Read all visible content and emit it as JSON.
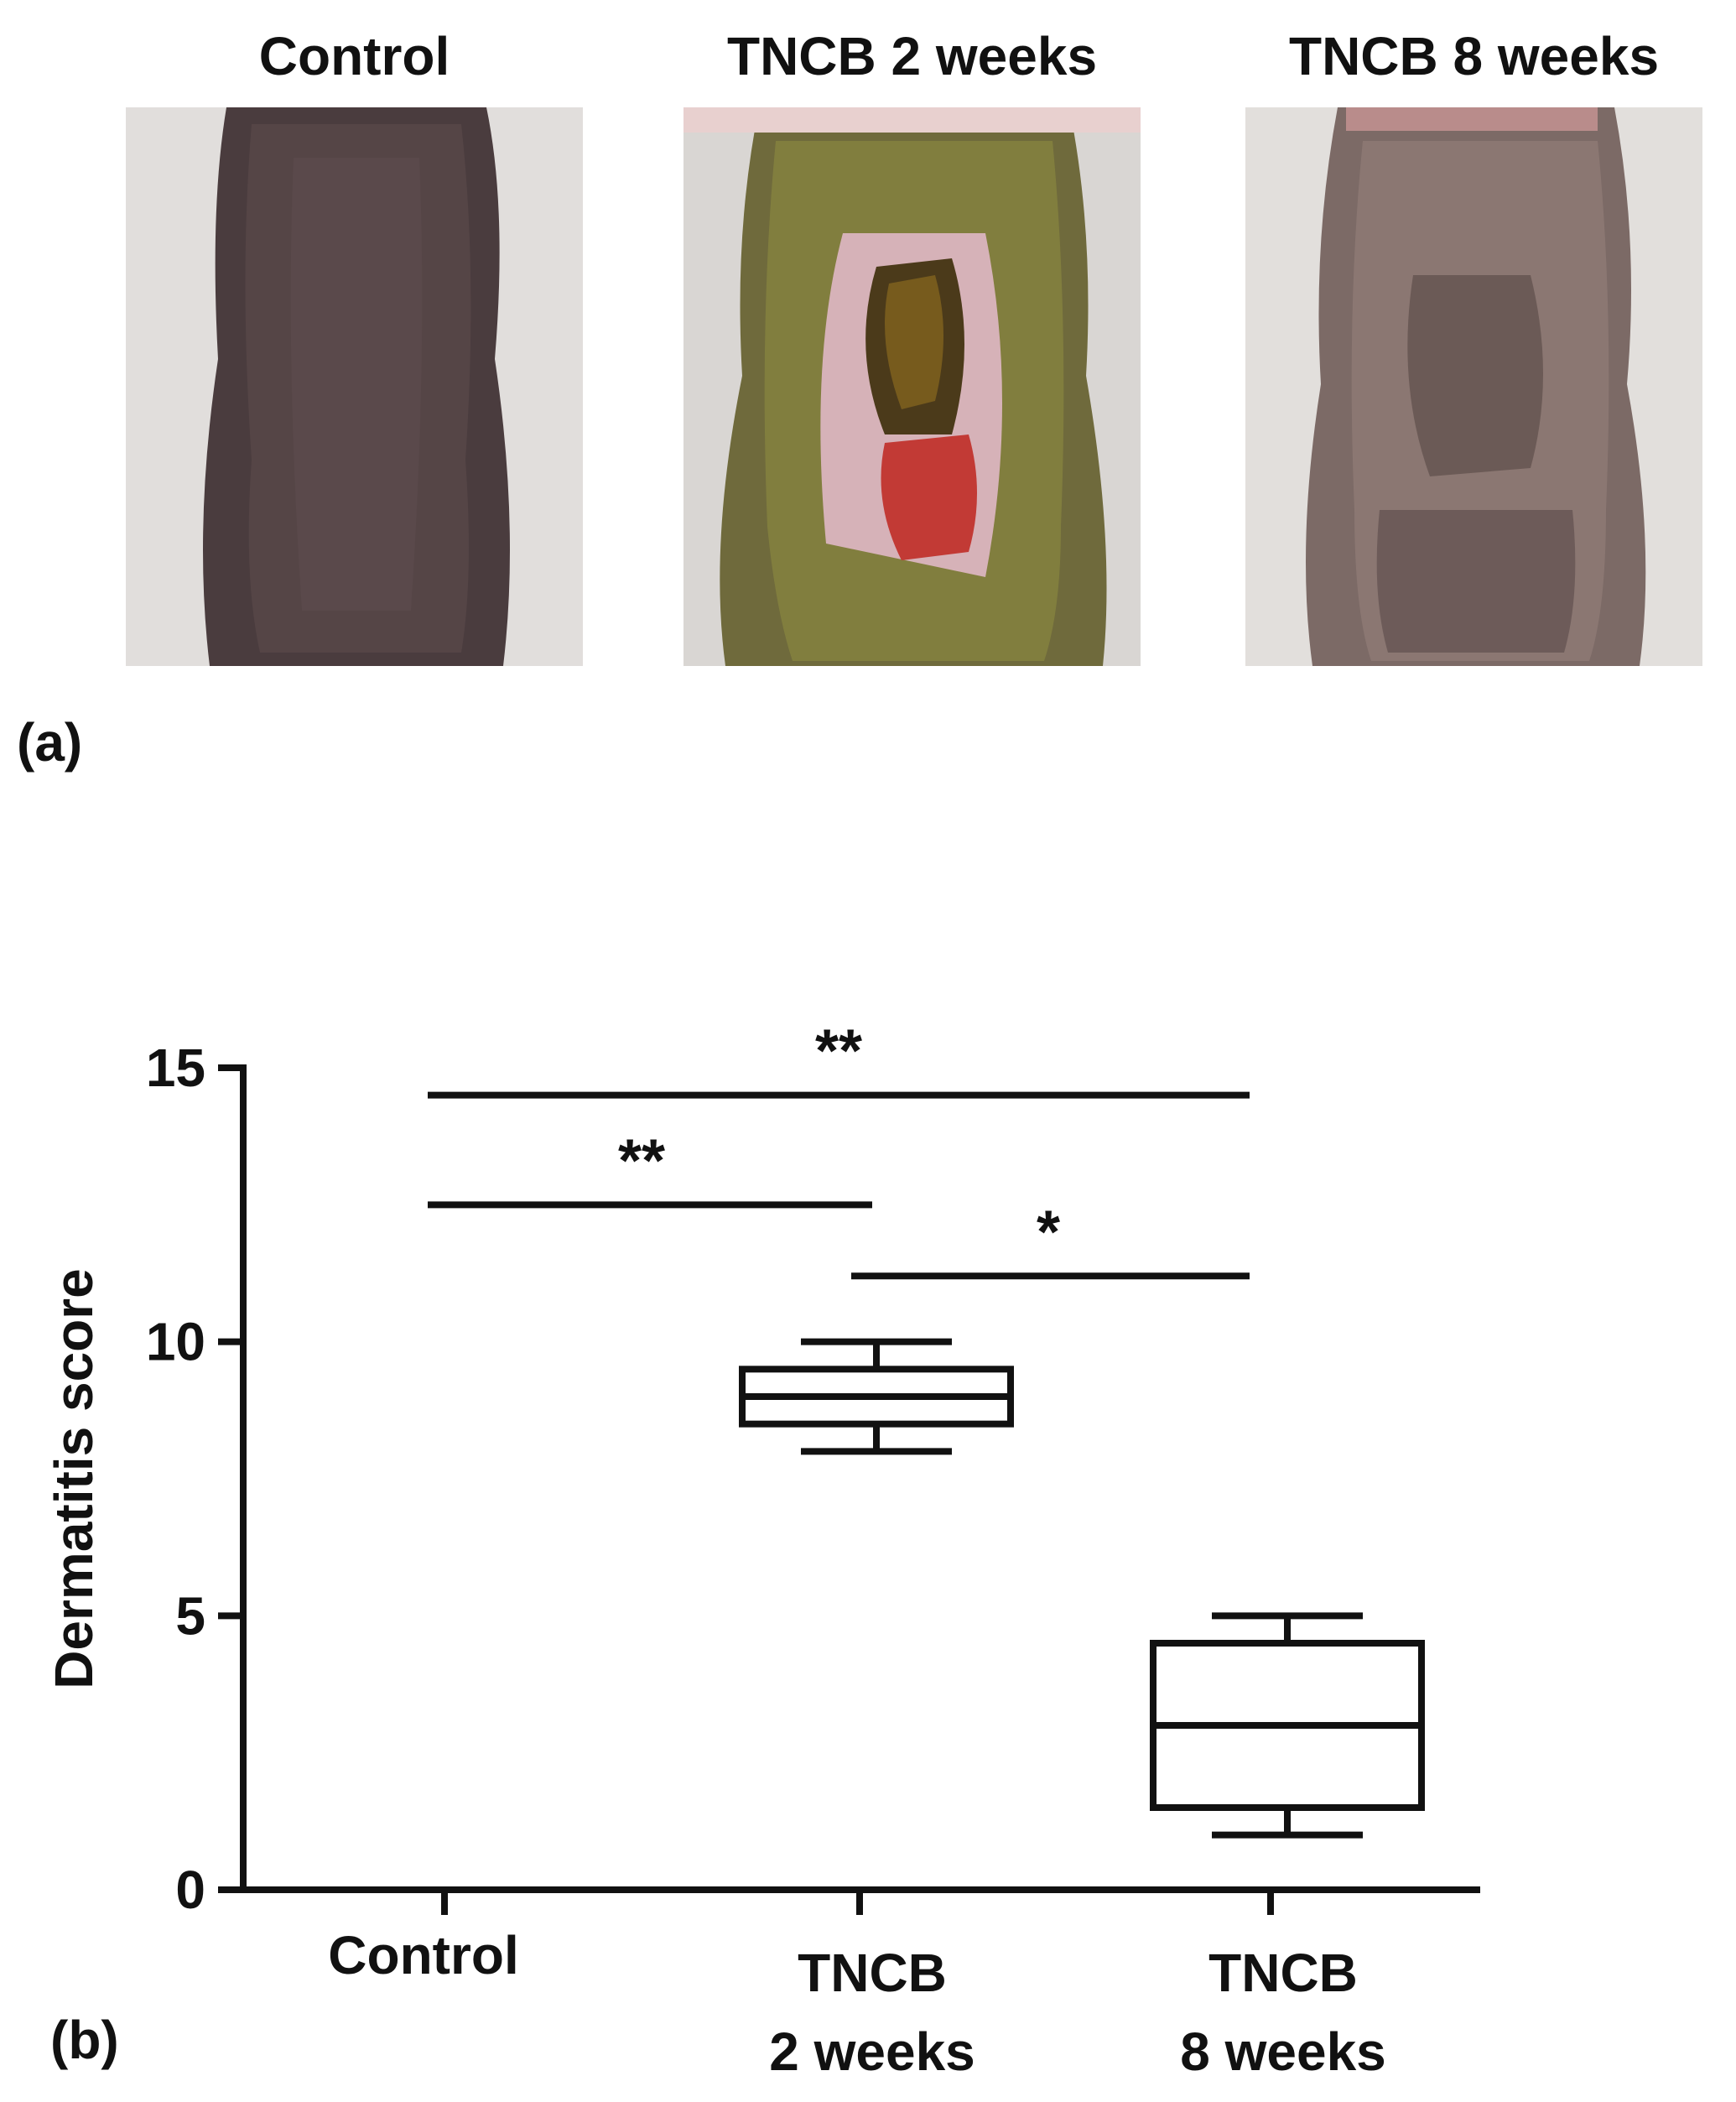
{
  "panel_a": {
    "label": "(a)",
    "photos": [
      {
        "title": "Control",
        "condition": "normal-skin"
      },
      {
        "title": "TNCB 2 weeks",
        "condition": "severe-lesion"
      },
      {
        "title": "TNCB 8 weeks",
        "condition": "mild-lesion"
      }
    ]
  },
  "panel_b": {
    "label": "(b)"
  },
  "chart_data": {
    "type": "boxplot",
    "title": "",
    "xlabel": "",
    "ylabel": "Dermatitis score",
    "ylim": [
      0,
      15
    ],
    "yticks": [
      0,
      5,
      10,
      15
    ],
    "categories": [
      {
        "lines": [
          "Control"
        ]
      },
      {
        "lines": [
          "TNCB",
          "2 weeks"
        ]
      },
      {
        "lines": [
          "TNCB",
          "8 weeks"
        ]
      }
    ],
    "boxes": [
      null,
      {
        "min": 8,
        "q1": 8.5,
        "median": 9,
        "q3": 9.5,
        "max": 10
      },
      {
        "min": 1,
        "q1": 1.5,
        "median": 3,
        "q3": 4.5,
        "max": 5
      }
    ],
    "significance": [
      {
        "from": 0,
        "to": 2,
        "y": 14.5,
        "label": "**"
      },
      {
        "from": 0,
        "to": 1,
        "y": 12.5,
        "label": "**"
      },
      {
        "from": 1,
        "to": 2,
        "y": 11.2,
        "label": "*"
      }
    ],
    "grid": false,
    "legend": "none"
  }
}
